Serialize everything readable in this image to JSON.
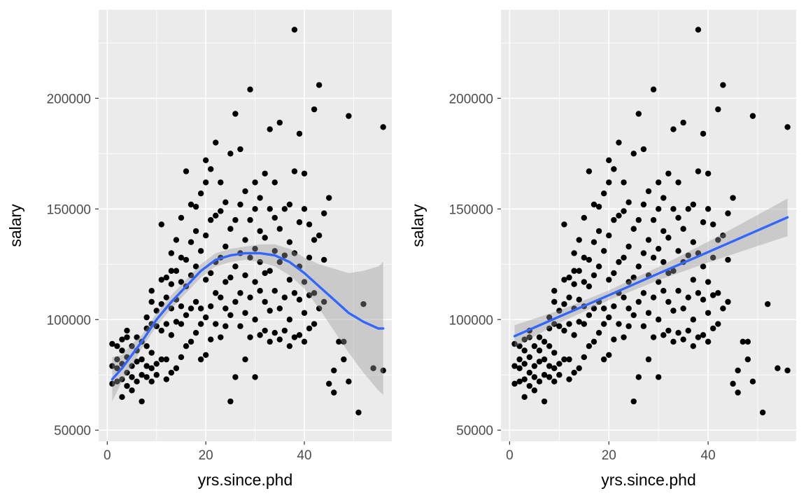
{
  "chart_data": [
    {
      "type": "scatter",
      "title": "",
      "xlabel": "yrs.since.phd",
      "ylabel": "salary",
      "xlim": [
        -1.75,
        57.75
      ],
      "ylim": [
        45000,
        240000
      ],
      "x_ticks": [
        0,
        20,
        40
      ],
      "y_ticks": [
        50000,
        100000,
        150000,
        200000
      ],
      "x_tick_labels": [
        "0",
        "20",
        "40"
      ],
      "y_tick_labels": [
        "50000",
        "100000",
        "150000",
        "200000"
      ],
      "grid": true,
      "point_color": "#000000",
      "points": [
        [
          1,
          71000
        ],
        [
          1,
          79000
        ],
        [
          1,
          89000
        ],
        [
          2,
          72000
        ],
        [
          2,
          78000
        ],
        [
          2,
          82000
        ],
        [
          2,
          88000
        ],
        [
          3,
          65000
        ],
        [
          3,
          73000
        ],
        [
          3,
          80000
        ],
        [
          3,
          86000
        ],
        [
          3,
          91000
        ],
        [
          4,
          70000
        ],
        [
          4,
          76000
        ],
        [
          4,
          83000
        ],
        [
          4,
          92000
        ],
        [
          4,
          95000
        ],
        [
          5,
          68000
        ],
        [
          5,
          74000
        ],
        [
          5,
          79000
        ],
        [
          5,
          88000
        ],
        [
          6,
          72000
        ],
        [
          6,
          81000
        ],
        [
          6,
          86000
        ],
        [
          6,
          92000
        ],
        [
          7,
          63000
        ],
        [
          7,
          75000
        ],
        [
          7,
          82000
        ],
        [
          7,
          90000
        ],
        [
          8,
          74000
        ],
        [
          8,
          79000
        ],
        [
          8,
          88000
        ],
        [
          8,
          96000
        ],
        [
          8,
          101000
        ],
        [
          9,
          72000
        ],
        [
          9,
          78000
        ],
        [
          9,
          85000
        ],
        [
          9,
          98000
        ],
        [
          9,
          108000
        ],
        [
          9,
          113000
        ],
        [
          10,
          75000
        ],
        [
          10,
          80000
        ],
        [
          10,
          97000
        ],
        [
          10,
          104000
        ],
        [
          11,
          82000
        ],
        [
          11,
          95000
        ],
        [
          11,
          107000
        ],
        [
          11,
          118000
        ],
        [
          11,
          143000
        ],
        [
          12,
          73000
        ],
        [
          12,
          82000
        ],
        [
          12,
          98000
        ],
        [
          12,
          110000
        ],
        [
          12,
          119000
        ],
        [
          13,
          76000
        ],
        [
          13,
          93000
        ],
        [
          13,
          105000
        ],
        [
          13,
          116000
        ],
        [
          13,
          122000
        ],
        [
          13,
          130000
        ],
        [
          14,
          78000
        ],
        [
          14,
          99000
        ],
        [
          14,
          109000
        ],
        [
          14,
          122000
        ],
        [
          14,
          136000
        ],
        [
          15,
          83000
        ],
        [
          15,
          98000
        ],
        [
          15,
          106000
        ],
        [
          15,
          117000
        ],
        [
          15,
          128000
        ],
        [
          15,
          146000
        ],
        [
          16,
          88000
        ],
        [
          16,
          102000
        ],
        [
          16,
          115000
        ],
        [
          16,
          127000
        ],
        [
          16,
          167000
        ],
        [
          17,
          90000
        ],
        [
          17,
          105000
        ],
        [
          17,
          120000
        ],
        [
          17,
          135000
        ],
        [
          17,
          152000
        ],
        [
          18,
          94000
        ],
        [
          18,
          108000
        ],
        [
          18,
          124000
        ],
        [
          18,
          140000
        ],
        [
          18,
          151000
        ],
        [
          19,
          82000
        ],
        [
          19,
          98000
        ],
        [
          19,
          105000
        ],
        [
          19,
          131000
        ],
        [
          19,
          157000
        ],
        [
          20,
          84000
        ],
        [
          20,
          101000
        ],
        [
          20,
          118000
        ],
        [
          20,
          138000
        ],
        [
          20,
          162000
        ],
        [
          20,
          172000
        ],
        [
          21,
          91000
        ],
        [
          21,
          106000
        ],
        [
          21,
          121000
        ],
        [
          21,
          145000
        ],
        [
          21,
          168000
        ],
        [
          22,
          98000
        ],
        [
          22,
          112000
        ],
        [
          22,
          126000
        ],
        [
          22,
          147000
        ],
        [
          22,
          180000
        ],
        [
          23,
          92000
        ],
        [
          23,
          110000
        ],
        [
          23,
          128000
        ],
        [
          23,
          149000
        ],
        [
          23,
          162000
        ],
        [
          24,
          97000
        ],
        [
          24,
          105000
        ],
        [
          24,
          117000
        ],
        [
          24,
          133000
        ],
        [
          24,
          153000
        ],
        [
          25,
          63000
        ],
        [
          25,
          102000
        ],
        [
          25,
          119000
        ],
        [
          25,
          141000
        ],
        [
          25,
          175000
        ],
        [
          26,
          74000
        ],
        [
          26,
          108000
        ],
        [
          26,
          124000
        ],
        [
          26,
          145000
        ],
        [
          26,
          193000
        ],
        [
          27,
          97000
        ],
        [
          27,
          112000
        ],
        [
          27,
          130000
        ],
        [
          27,
          152000
        ],
        [
          27,
          177000
        ],
        [
          28,
          82000
        ],
        [
          28,
          103000
        ],
        [
          28,
          120000
        ],
        [
          28,
          136000
        ],
        [
          28,
          158000
        ],
        [
          29,
          92000
        ],
        [
          29,
          110000
        ],
        [
          29,
          128000
        ],
        [
          29,
          145000
        ],
        [
          29,
          204000
        ],
        [
          30,
          74000
        ],
        [
          30,
          100000
        ],
        [
          30,
          117000
        ],
        [
          30,
          132000
        ],
        [
          30,
          150000
        ],
        [
          30,
          162000
        ],
        [
          31,
          93000
        ],
        [
          31,
          113000
        ],
        [
          31,
          126000
        ],
        [
          31,
          140000
        ],
        [
          31,
          155000
        ],
        [
          32,
          95000
        ],
        [
          32,
          108000
        ],
        [
          32,
          121000
        ],
        [
          32,
          137000
        ],
        [
          32,
          166000
        ],
        [
          33,
          90000
        ],
        [
          33,
          104000
        ],
        [
          33,
          122000
        ],
        [
          33,
          150000
        ],
        [
          33,
          186000
        ],
        [
          34,
          94000
        ],
        [
          34,
          113000
        ],
        [
          34,
          131000
        ],
        [
          34,
          146000
        ],
        [
          34,
          162000
        ],
        [
          35,
          91000
        ],
        [
          35,
          105000
        ],
        [
          35,
          126000
        ],
        [
          35,
          141000
        ],
        [
          35,
          189000
        ],
        [
          36,
          95000
        ],
        [
          36,
          110000
        ],
        [
          36,
          129000
        ],
        [
          36,
          150000
        ],
        [
          37,
          88000
        ],
        [
          37,
          100000
        ],
        [
          37,
          118000
        ],
        [
          37,
          135000
        ],
        [
          37,
          152000
        ],
        [
          38,
          92000
        ],
        [
          38,
          112000
        ],
        [
          38,
          130000
        ],
        [
          38,
          167000
        ],
        [
          38,
          231000
        ],
        [
          39,
          93000
        ],
        [
          39,
          109000
        ],
        [
          39,
          124000
        ],
        [
          39,
          144000
        ],
        [
          39,
          184000
        ],
        [
          40,
          90000
        ],
        [
          40,
          103000
        ],
        [
          40,
          117000
        ],
        [
          40,
          150000
        ],
        [
          40,
          166000
        ],
        [
          41,
          96000
        ],
        [
          41,
          111000
        ],
        [
          41,
          128000
        ],
        [
          41,
          143000
        ],
        [
          42,
          98000
        ],
        [
          42,
          112000
        ],
        [
          42,
          136000
        ],
        [
          42,
          195000
        ],
        [
          43,
          105000
        ],
        [
          43,
          138000
        ],
        [
          43,
          206000
        ],
        [
          44,
          108000
        ],
        [
          44,
          127000
        ],
        [
          44,
          148000
        ],
        [
          45,
          71000
        ],
        [
          45,
          155000
        ],
        [
          46,
          67000
        ],
        [
          46,
          77000
        ],
        [
          47,
          90000
        ],
        [
          48,
          90000
        ],
        [
          48,
          82000
        ],
        [
          49,
          72000
        ],
        [
          49,
          192000
        ],
        [
          51,
          58000
        ],
        [
          52,
          107000
        ],
        [
          54,
          78000
        ],
        [
          56,
          77000
        ],
        [
          56,
          187000
        ]
      ],
      "smooth": {
        "method": "loess",
        "color": "#3366ff",
        "ribbon_color": "#999999",
        "x": [
          1,
          3,
          5,
          7,
          10,
          13,
          16,
          19,
          22,
          25,
          28,
          31,
          34,
          37,
          40,
          43,
          46,
          49,
          52,
          55,
          56
        ],
        "y": [
          73000,
          78000,
          84000,
          90000,
          100000,
          108000,
          115000,
          122000,
          127000,
          129000,
          130000,
          130000,
          129000,
          126000,
          121000,
          115000,
          109000,
          103000,
          99000,
          96000,
          96000
        ],
        "lower": [
          63000,
          72000,
          79000,
          87000,
          97000,
          105000,
          112000,
          119000,
          124000,
          126000,
          127000,
          126000,
          124000,
          120000,
          114000,
          105000,
          95000,
          85000,
          76000,
          68000,
          66000
        ],
        "upper": [
          83000,
          84000,
          89000,
          93000,
          103000,
          111000,
          118000,
          125000,
          130000,
          132000,
          133000,
          134000,
          134000,
          132000,
          128000,
          125000,
          123000,
          121000,
          122000,
          124000,
          126000
        ]
      }
    },
    {
      "type": "scatter",
      "title": "",
      "xlabel": "yrs.since.phd",
      "ylabel": "salary",
      "xlim": [
        -1.75,
        57.75
      ],
      "ylim": [
        45000,
        240000
      ],
      "x_ticks": [
        0,
        20,
        40
      ],
      "y_ticks": [
        50000,
        100000,
        150000,
        200000
      ],
      "x_tick_labels": [
        "0",
        "20",
        "40"
      ],
      "y_tick_labels": [
        "50000",
        "100000",
        "150000",
        "200000"
      ],
      "grid": true,
      "point_color": "#000000",
      "points": "same as left panel",
      "smooth": {
        "method": "lm",
        "color": "#3366ff",
        "ribbon_color": "#999999",
        "x": [
          1,
          10,
          20,
          30,
          40,
          50,
          56
        ],
        "y": [
          92500,
          101300,
          111000,
          120800,
          130500,
          140300,
          146200
        ],
        "lower": [
          87500,
          98500,
          108800,
          117800,
          125800,
          133300,
          137700
        ],
        "upper": [
          97500,
          104100,
          113200,
          123800,
          135200,
          147300,
          154700
        ]
      }
    }
  ]
}
